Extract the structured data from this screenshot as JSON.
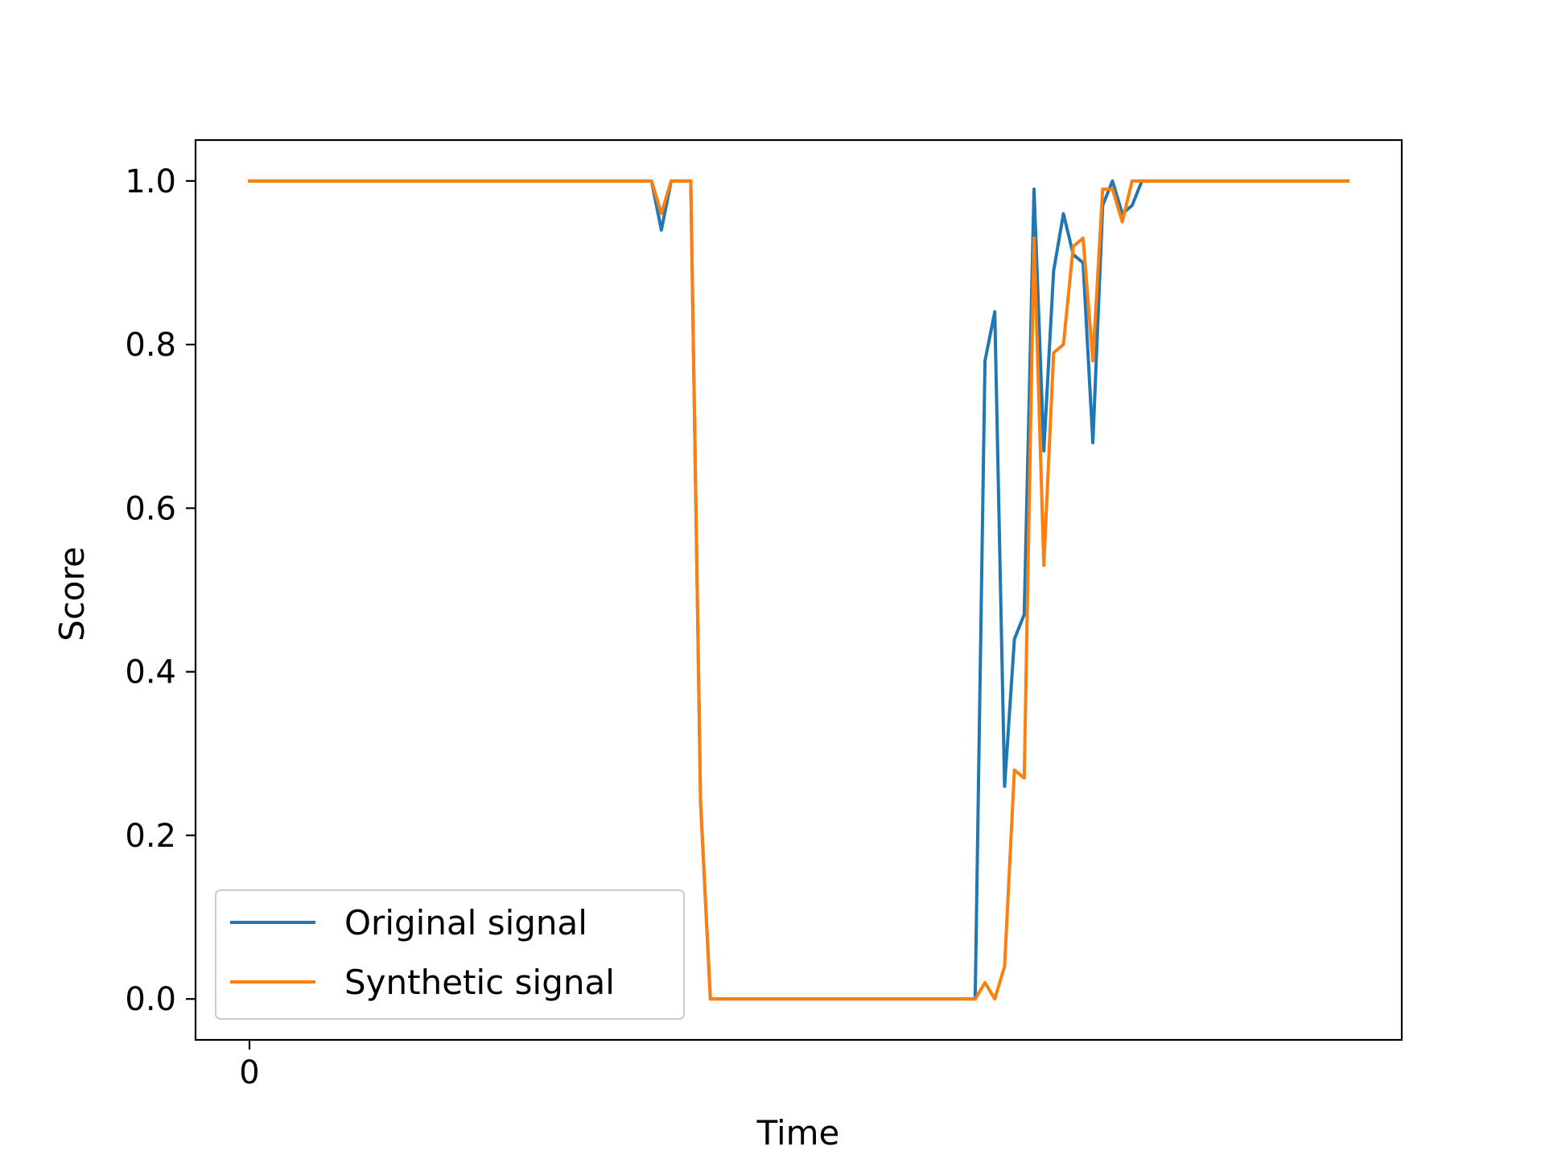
{
  "chart_data": {
    "type": "line",
    "title": "",
    "xlabel": "Time",
    "ylabel": "Score",
    "x_ticks": [
      {
        "value": 0,
        "label": "0"
      }
    ],
    "y_ticks": [
      {
        "value": 0.0,
        "label": "0.0"
      },
      {
        "value": 0.2,
        "label": "0.2"
      },
      {
        "value": 0.4,
        "label": "0.4"
      },
      {
        "value": 0.6,
        "label": "0.6"
      },
      {
        "value": 0.8,
        "label": "0.8"
      },
      {
        "value": 1.0,
        "label": "1.0"
      }
    ],
    "xlim": [
      -5.5,
      117.5
    ],
    "ylim": [
      -0.05,
      1.05
    ],
    "grid": false,
    "legend_position": "lower-left",
    "x": [
      0,
      1,
      2,
      3,
      4,
      5,
      6,
      7,
      8,
      9,
      10,
      11,
      12,
      13,
      14,
      15,
      16,
      17,
      18,
      19,
      20,
      21,
      22,
      23,
      24,
      25,
      26,
      27,
      28,
      29,
      30,
      31,
      32,
      33,
      34,
      35,
      36,
      37,
      38,
      39,
      40,
      41,
      42,
      43,
      44,
      45,
      46,
      47,
      48,
      49,
      50,
      51,
      52,
      53,
      54,
      55,
      56,
      57,
      58,
      59,
      60,
      61,
      62,
      63,
      64,
      65,
      66,
      67,
      68,
      69,
      70,
      71,
      72,
      73,
      74,
      75,
      76,
      77,
      78,
      79,
      80,
      81,
      82,
      83,
      84,
      85,
      86,
      87,
      88,
      89,
      90,
      91,
      92,
      93,
      94,
      95,
      96,
      97,
      98,
      99,
      100,
      101,
      102,
      103,
      104,
      105,
      106,
      107,
      108,
      109,
      110,
      111,
      112
    ],
    "series": [
      {
        "name": "Original signal",
        "color": "#1f77b4",
        "values": [
          1,
          1,
          1,
          1,
          1,
          1,
          1,
          1,
          1,
          1,
          1,
          1,
          1,
          1,
          1,
          1,
          1,
          1,
          1,
          1,
          1,
          1,
          1,
          1,
          1,
          1,
          1,
          1,
          1,
          1,
          1,
          1,
          1,
          1,
          1,
          1,
          1,
          1,
          1,
          1,
          1,
          1,
          0.94,
          1,
          1,
          1,
          0.24,
          0,
          0,
          0,
          0,
          0,
          0,
          0,
          0,
          0,
          0,
          0,
          0,
          0,
          0,
          0,
          0,
          0,
          0,
          0,
          0,
          0,
          0,
          0,
          0,
          0,
          0,
          0,
          0,
          0.78,
          0.84,
          0.26,
          0.44,
          0.47,
          0.99,
          0.67,
          0.89,
          0.96,
          0.91,
          0.9,
          0.68,
          0.97,
          1,
          0.96,
          0.97,
          1,
          1,
          1,
          1,
          1,
          1,
          1,
          1,
          1,
          1,
          1,
          1,
          1,
          1,
          1,
          1,
          1,
          1,
          1,
          1,
          1,
          1
        ]
      },
      {
        "name": "Synthetic signal",
        "color": "#ff7f0e",
        "values": [
          1,
          1,
          1,
          1,
          1,
          1,
          1,
          1,
          1,
          1,
          1,
          1,
          1,
          1,
          1,
          1,
          1,
          1,
          1,
          1,
          1,
          1,
          1,
          1,
          1,
          1,
          1,
          1,
          1,
          1,
          1,
          1,
          1,
          1,
          1,
          1,
          1,
          1,
          1,
          1,
          1,
          1,
          0.96,
          1,
          1,
          1,
          0.24,
          0,
          0,
          0,
          0,
          0,
          0,
          0,
          0,
          0,
          0,
          0,
          0,
          0,
          0,
          0,
          0,
          0,
          0,
          0,
          0,
          0,
          0,
          0,
          0,
          0,
          0,
          0,
          0,
          0.02,
          0,
          0.04,
          0.28,
          0.27,
          0.93,
          0.53,
          0.79,
          0.8,
          0.92,
          0.93,
          0.78,
          0.99,
          0.99,
          0.95,
          1,
          1,
          1,
          1,
          1,
          1,
          1,
          1,
          1,
          1,
          1,
          1,
          1,
          1,
          1,
          1,
          1,
          1,
          1,
          1,
          1,
          1,
          1
        ]
      }
    ]
  }
}
